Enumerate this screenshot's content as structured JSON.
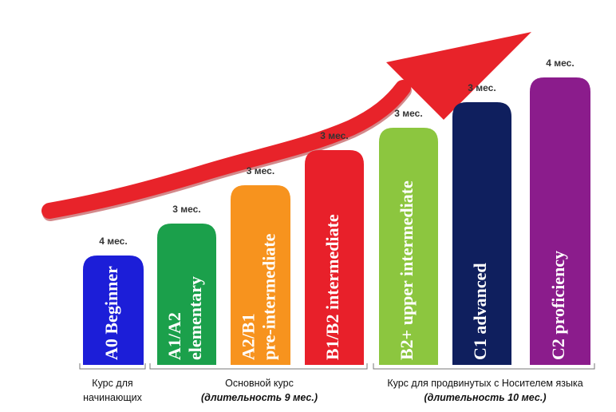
{
  "levels": [
    {
      "duration": "4 мес.",
      "label": [
        "A0 Beginner"
      ]
    },
    {
      "duration": "3 мес.",
      "label": [
        "A1/A2",
        "elementary"
      ]
    },
    {
      "duration": "3 мес.",
      "label": [
        "A2/B1",
        "pre-intermediate"
      ]
    },
    {
      "duration": "3 мес.",
      "label": [
        "B1/B2 intermediate"
      ]
    },
    {
      "duration": "3 мес.",
      "label": [
        "B2+ upper intermediate"
      ]
    },
    {
      "duration": "3 мес.",
      "label": [
        "C1 advanced"
      ]
    },
    {
      "duration": "4 мес.",
      "label": [
        "C2 proficiency"
      ]
    }
  ],
  "groups": [
    {
      "lines": [
        "Курс для",
        "начинающих"
      ]
    },
    {
      "lines": [
        "Основной курс",
        "(длительность 9 мес.)"
      ]
    },
    {
      "lines": [
        "Курс для продвинутых с Носителем языка",
        "(длительность 10 мес.)"
      ]
    }
  ]
}
